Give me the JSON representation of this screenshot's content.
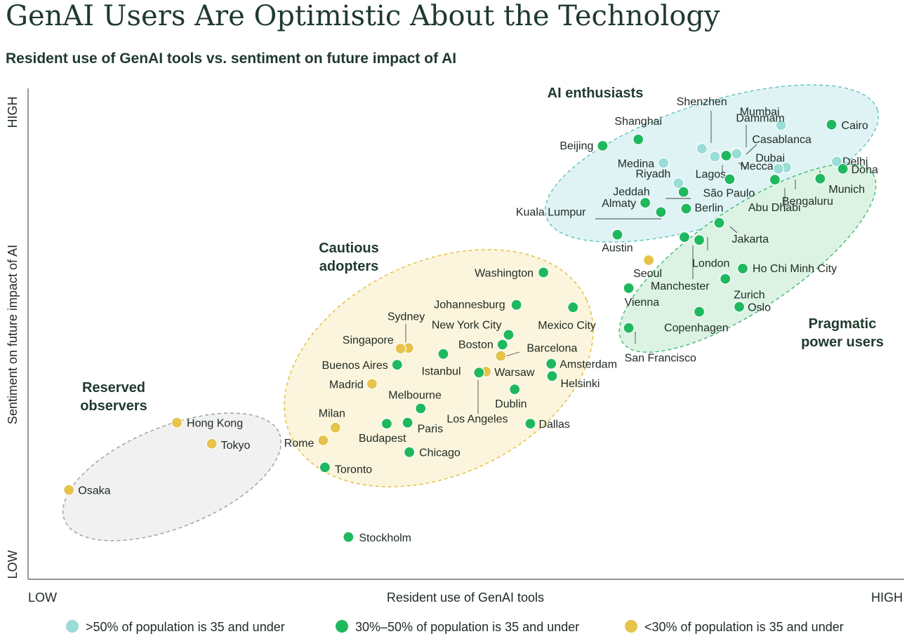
{
  "title": "GenAI Users Are Optimistic About the Technology",
  "subtitle": "Resident use of GenAI tools vs. sentiment on future impact of AI",
  "colors": {
    "light_teal": "#9adcd6",
    "green": "#1fb85f",
    "gold": "#e6c34a",
    "ellipse_enthusiasts_fill": "#dff3f5",
    "ellipse_enthusiasts_stroke": "#5fc3b8",
    "ellipse_pragmatic_fill": "#dcf3e4",
    "ellipse_pragmatic_stroke": "#3cba73",
    "ellipse_cautious_fill": "#fcf5dd",
    "ellipse_cautious_stroke": "#e3bc3a",
    "ellipse_reserved_fill": "#f0f1f0",
    "ellipse_reserved_stroke": "#9a9d9b"
  },
  "chart_data": {
    "type": "scatter",
    "title": "GenAI Users Are Optimistic About the Technology",
    "subtitle": "Resident use of GenAI tools vs. sentiment on future impact of AI",
    "xlabel": "Resident use of GenAI tools",
    "ylabel": "Sentiment on future impact of AI",
    "x_low_label": "LOW",
    "x_high_label": "HIGH",
    "y_low_label": "LOW",
    "y_high_label": "HIGH",
    "xlim": [
      0,
      100
    ],
    "ylim": [
      0,
      100
    ],
    "legend_position": "bottom",
    "legend": [
      {
        "key": "a",
        "label": ">50% of population is 35 and under"
      },
      {
        "key": "b",
        "label": "30%–50% of population is 35 and under"
      },
      {
        "key": "c",
        "label": "<30% of population is 35 and under"
      }
    ],
    "groups": [
      {
        "name": "AI enthusiasts",
        "lines": [
          "AI enthusiasts"
        ]
      },
      {
        "name": "Pragmatic power users",
        "lines": [
          "Pragmatic",
          "power users"
        ]
      },
      {
        "name": "Cautious adopters",
        "lines": [
          "Cautious",
          "adopters"
        ]
      },
      {
        "name": "Reserved observers",
        "lines": [
          "Reserved",
          "observers"
        ]
      }
    ],
    "points": [
      {
        "city": "Mumbai",
        "x": 86.5,
        "y": 92.5,
        "cat": "a"
      },
      {
        "city": "Cairo",
        "x": 92.3,
        "y": 92.6,
        "cat": "b"
      },
      {
        "city": "Shenzhen",
        "x": 77.4,
        "y": 87.7,
        "cat": "a"
      },
      {
        "city": "Dammam",
        "x": 81.4,
        "y": 86.9,
        "cat": "a"
      },
      {
        "city": "Casablanca",
        "x": 81.4,
        "y": 86.7,
        "cat": "a"
      },
      {
        "city": "Shanghai",
        "x": 70.1,
        "y": 89.6,
        "cat": "b"
      },
      {
        "city": "Beijing",
        "x": 66.0,
        "y": 88.3,
        "cat": "b"
      },
      {
        "city": "Medina",
        "x": 73.0,
        "y": 84.8,
        "cat": "a"
      },
      {
        "city": "Lagos",
        "x": 78.9,
        "y": 86.1,
        "cat": "a"
      },
      {
        "city": "Mecca",
        "x": 80.2,
        "y": 86.3,
        "cat": "b"
      },
      {
        "city": "Dubai",
        "x": 87.1,
        "y": 83.9,
        "cat": "a"
      },
      {
        "city": "Delhi",
        "x": 92.9,
        "y": 85.1,
        "cat": "a"
      },
      {
        "city": "Doha",
        "x": 93.6,
        "y": 83.6,
        "cat": "b"
      },
      {
        "city": "Munich",
        "x": 91.0,
        "y": 81.6,
        "cat": "b"
      },
      {
        "city": "Bengaluru",
        "x": 85.8,
        "y": 81.4,
        "cat": "b"
      },
      {
        "city": "Riyadh",
        "x": 74.7,
        "y": 80.7,
        "cat": "a"
      },
      {
        "city": "São Paulo",
        "x": 80.6,
        "y": 81.5,
        "cat": "b"
      },
      {
        "city": "Jeddah",
        "x": 75.3,
        "y": 78.9,
        "cat": "b"
      },
      {
        "city": "Almaty",
        "x": 70.9,
        "y": 76.7,
        "cat": "b"
      },
      {
        "city": "Berlin",
        "x": 75.6,
        "y": 75.5,
        "cat": "b"
      },
      {
        "city": "Kuala Lumpur",
        "x": 72.7,
        "y": 74.8,
        "cat": "b"
      },
      {
        "city": "Abu Dhabi",
        "x": 86.2,
        "y": 83.6,
        "cat": "a"
      },
      {
        "city": "Jakarta",
        "x": 79.4,
        "y": 72.6,
        "cat": "b"
      },
      {
        "city": "Austin",
        "x": 67.7,
        "y": 70.2,
        "cat": "b"
      },
      {
        "city": "London",
        "x": 77.1,
        "y": 69.1,
        "cat": "b"
      },
      {
        "city": "Manchester",
        "x": 75.4,
        "y": 69.7,
        "cat": "b"
      },
      {
        "city": "Seoul",
        "x": 71.3,
        "y": 65.0,
        "cat": "c"
      },
      {
        "city": "Ho Chi Minh City",
        "x": 82.1,
        "y": 63.3,
        "cat": "b"
      },
      {
        "city": "Zurich",
        "x": 80.1,
        "y": 61.2,
        "cat": "b"
      },
      {
        "city": "Vienna",
        "x": 69.0,
        "y": 59.3,
        "cat": "b"
      },
      {
        "city": "Oslo",
        "x": 81.7,
        "y": 55.5,
        "cat": "b"
      },
      {
        "city": "Copenhagen",
        "x": 77.1,
        "y": 54.5,
        "cat": "b"
      },
      {
        "city": "San Francisco",
        "x": 69.0,
        "y": 51.2,
        "cat": "b"
      },
      {
        "city": "Washington",
        "x": 59.2,
        "y": 62.5,
        "cat": "b"
      },
      {
        "city": "Johannesburg",
        "x": 56.1,
        "y": 55.9,
        "cat": "b"
      },
      {
        "city": "Mexico City",
        "x": 62.6,
        "y": 55.4,
        "cat": "b"
      },
      {
        "city": "New York City",
        "x": 55.2,
        "y": 49.8,
        "cat": "b"
      },
      {
        "city": "Boston",
        "x": 54.5,
        "y": 47.8,
        "cat": "b"
      },
      {
        "city": "Sydney",
        "x": 43.7,
        "y": 47.1,
        "cat": "c"
      },
      {
        "city": "Singapore",
        "x": 42.8,
        "y": 47.0,
        "cat": "c"
      },
      {
        "city": "Istanbul",
        "x": 47.7,
        "y": 45.9,
        "cat": "b"
      },
      {
        "city": "Barcelona",
        "x": 54.3,
        "y": 45.5,
        "cat": "c"
      },
      {
        "city": "Buenos Aires",
        "x": 42.4,
        "y": 43.7,
        "cat": "b"
      },
      {
        "city": "Amsterdam",
        "x": 60.1,
        "y": 43.9,
        "cat": "b"
      },
      {
        "city": "Helsinki",
        "x": 60.2,
        "y": 41.4,
        "cat": "b"
      },
      {
        "city": "Warsaw",
        "x": 52.6,
        "y": 42.3,
        "cat": "c"
      },
      {
        "city": "Los Angeles",
        "x": 51.8,
        "y": 42.1,
        "cat": "b"
      },
      {
        "city": "Madrid",
        "x": 39.5,
        "y": 39.8,
        "cat": "c"
      },
      {
        "city": "Dublin",
        "x": 55.9,
        "y": 38.7,
        "cat": "b"
      },
      {
        "city": "Melbourne",
        "x": 45.1,
        "y": 34.8,
        "cat": "b"
      },
      {
        "city": "Paris",
        "x": 43.6,
        "y": 31.9,
        "cat": "b"
      },
      {
        "city": "Budapest",
        "x": 41.2,
        "y": 31.7,
        "cat": "b"
      },
      {
        "city": "Dallas",
        "x": 57.7,
        "y": 31.7,
        "cat": "b"
      },
      {
        "city": "Milan",
        "x": 35.3,
        "y": 30.9,
        "cat": "c"
      },
      {
        "city": "Rome",
        "x": 33.9,
        "y": 28.3,
        "cat": "c"
      },
      {
        "city": "Chicago",
        "x": 43.8,
        "y": 25.9,
        "cat": "b"
      },
      {
        "city": "Toronto",
        "x": 34.1,
        "y": 22.8,
        "cat": "b"
      },
      {
        "city": "Stockholm",
        "x": 36.8,
        "y": 8.6,
        "cat": "b"
      },
      {
        "city": "Hong Kong",
        "x": 17.1,
        "y": 31.9,
        "cat": "c"
      },
      {
        "city": "Tokyo",
        "x": 21.1,
        "y": 27.6,
        "cat": "c"
      },
      {
        "city": "Osaka",
        "x": 4.7,
        "y": 18.2,
        "cat": "c"
      }
    ]
  }
}
